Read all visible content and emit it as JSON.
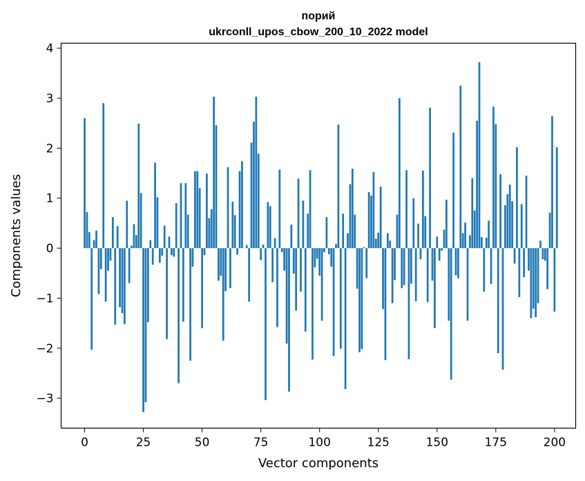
{
  "chart_data": {
    "type": "bar",
    "title": [
      "порий",
      "ukrconll_upos_cbow_200_10_2022 model"
    ],
    "xlabel": "Vector components",
    "ylabel": "Components values",
    "xlim": [
      -10,
      209
    ],
    "ylim": [
      -3.6,
      4.1
    ],
    "xticks": [
      0,
      25,
      50,
      75,
      100,
      125,
      150,
      175,
      200
    ],
    "yticks": [
      -3,
      -2,
      -1,
      0,
      1,
      2,
      3,
      4
    ],
    "xtick_labels": [
      "0",
      "25",
      "50",
      "75",
      "100",
      "125",
      "150",
      "175",
      "200"
    ],
    "ytick_labels": [
      "−3",
      "−2",
      "−1",
      "0",
      "1",
      "2",
      "3",
      "4"
    ],
    "grid": false,
    "bar_color": "#1f77b4",
    "values": [
      2.6,
      0.72,
      0.32,
      -2.03,
      0.16,
      0.35,
      -0.92,
      -0.42,
      2.9,
      -1.07,
      -0.45,
      -0.25,
      0.62,
      -1.53,
      0.44,
      -1.18,
      -1.3,
      -1.52,
      0.95,
      -0.7,
      0.05,
      0.48,
      0.26,
      2.49,
      1.1,
      -3.28,
      -3.08,
      -1.48,
      0.16,
      -0.33,
      1.71,
      1.02,
      -0.29,
      -0.15,
      0.45,
      -1.82,
      0.23,
      -0.14,
      -0.17,
      0.9,
      -2.7,
      1.3,
      -1.47,
      1.3,
      0.67,
      -2.25,
      -0.37,
      1.54,
      1.54,
      1.2,
      -1.6,
      -0.14,
      1.49,
      0.6,
      0.78,
      3.03,
      2.46,
      -0.65,
      -0.55,
      -1.85,
      -0.86,
      1.62,
      -0.8,
      0.93,
      0.66,
      -0.13,
      1.54,
      1.74,
      0.0,
      0.06,
      -1.07,
      2.11,
      2.53,
      3.03,
      1.89,
      -0.24,
      0.07,
      -3.04,
      0.92,
      0.84,
      -0.68,
      0.2,
      -1.58,
      1.57,
      -0.08,
      -0.45,
      -1.91,
      -2.87,
      0.47,
      -0.51,
      -1.25,
      1.39,
      -0.87,
      0.95,
      -1.67,
      0.69,
      1.56,
      -2.23,
      -0.38,
      -0.21,
      -0.55,
      -1.45,
      -0.08,
      0.62,
      -0.12,
      -0.37,
      -2.16,
      0.08,
      2.47,
      -2.01,
      0.69,
      -2.82,
      0.3,
      1.28,
      1.59,
      0.67,
      -0.81,
      -2.08,
      -2.02,
      0.02,
      -0.6,
      1.12,
      1.05,
      1.52,
      0.19,
      0.31,
      1.23,
      -1.22,
      -2.24,
      0.3,
      0.15,
      -1.1,
      -0.64,
      0.67,
      3.0,
      -0.8,
      -0.74,
      1.56,
      -2.22,
      -0.71,
      1.0,
      -1.06,
      0.49,
      -0.22,
      1.55,
      0.64,
      -1.08,
      2.81,
      -0.65,
      -1.6,
      0.23,
      -0.25,
      -0.05,
      0.37,
      0.97,
      -1.45,
      -2.63,
      2.31,
      -0.54,
      -0.6,
      3.25,
      0.3,
      0.51,
      -1.45,
      0.26,
      1.4,
      0.75,
      2.55,
      3.72,
      0.22,
      -0.87,
      0.21,
      0.55,
      -0.72,
      2.83,
      2.48,
      -2.1,
      1.48,
      -2.43,
      0.86,
      1.08,
      1.27,
      0.94,
      -0.31,
      2.02,
      -0.98,
      0.88,
      -0.58,
      1.45,
      -0.45,
      -1.4,
      -1.21,
      -1.38,
      -1.1,
      0.15,
      -0.22,
      -0.25,
      -0.82,
      0.71,
      2.64,
      -1.27,
      2.02
    ]
  }
}
